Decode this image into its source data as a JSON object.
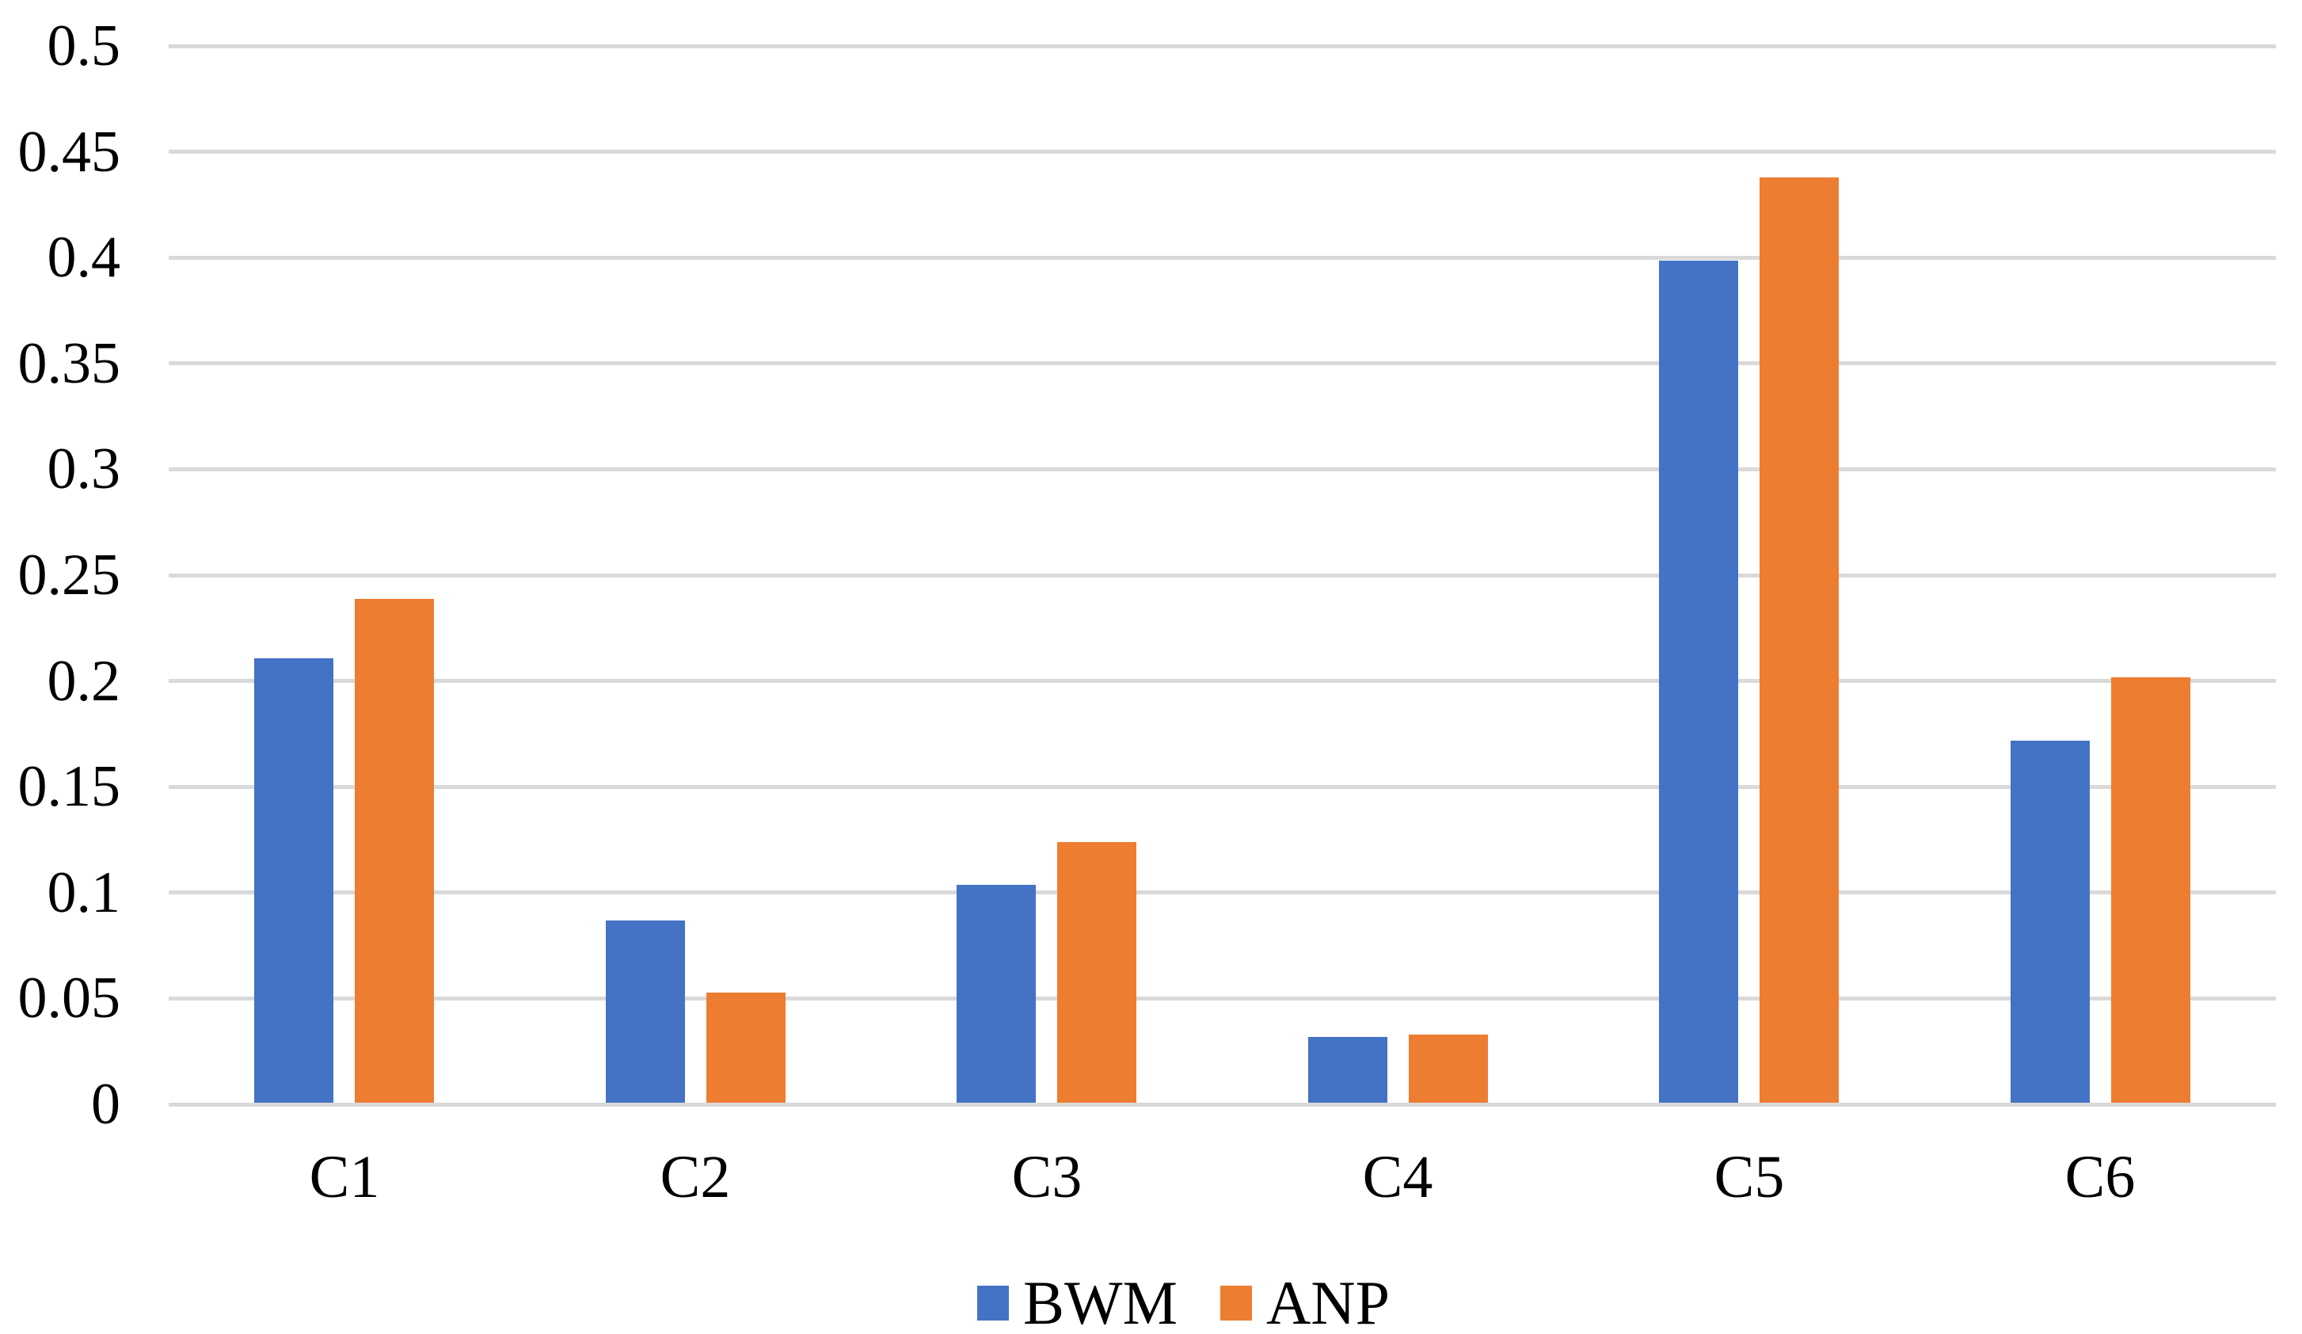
{
  "chart_data": {
    "type": "bar",
    "title": "",
    "xlabel": "",
    "ylabel": "",
    "categories": [
      "C1",
      "C2",
      "C3",
      "C4",
      "C5",
      "C6"
    ],
    "series": [
      {
        "name": "BWM",
        "color": "#4472C4",
        "values": [
          0.21,
          0.086,
          0.103,
          0.031,
          0.398,
          0.171
        ]
      },
      {
        "name": "ANP",
        "color": "#ED7D31",
        "values": [
          0.238,
          0.052,
          0.123,
          0.032,
          0.437,
          0.201
        ]
      }
    ],
    "ylim": [
      0,
      0.5
    ],
    "ytick_step": 0.05,
    "ytick_labels": [
      "0",
      "0.05",
      "0.1",
      "0.15",
      "0.2",
      "0.25",
      "0.3",
      "0.35",
      "0.4",
      "0.45",
      "0.5"
    ],
    "grid": "horizontal",
    "gridline_color": "#D9D9D9",
    "background_color": "#FFFFFF",
    "text_color": "#000000",
    "legend_position": "bottom"
  }
}
